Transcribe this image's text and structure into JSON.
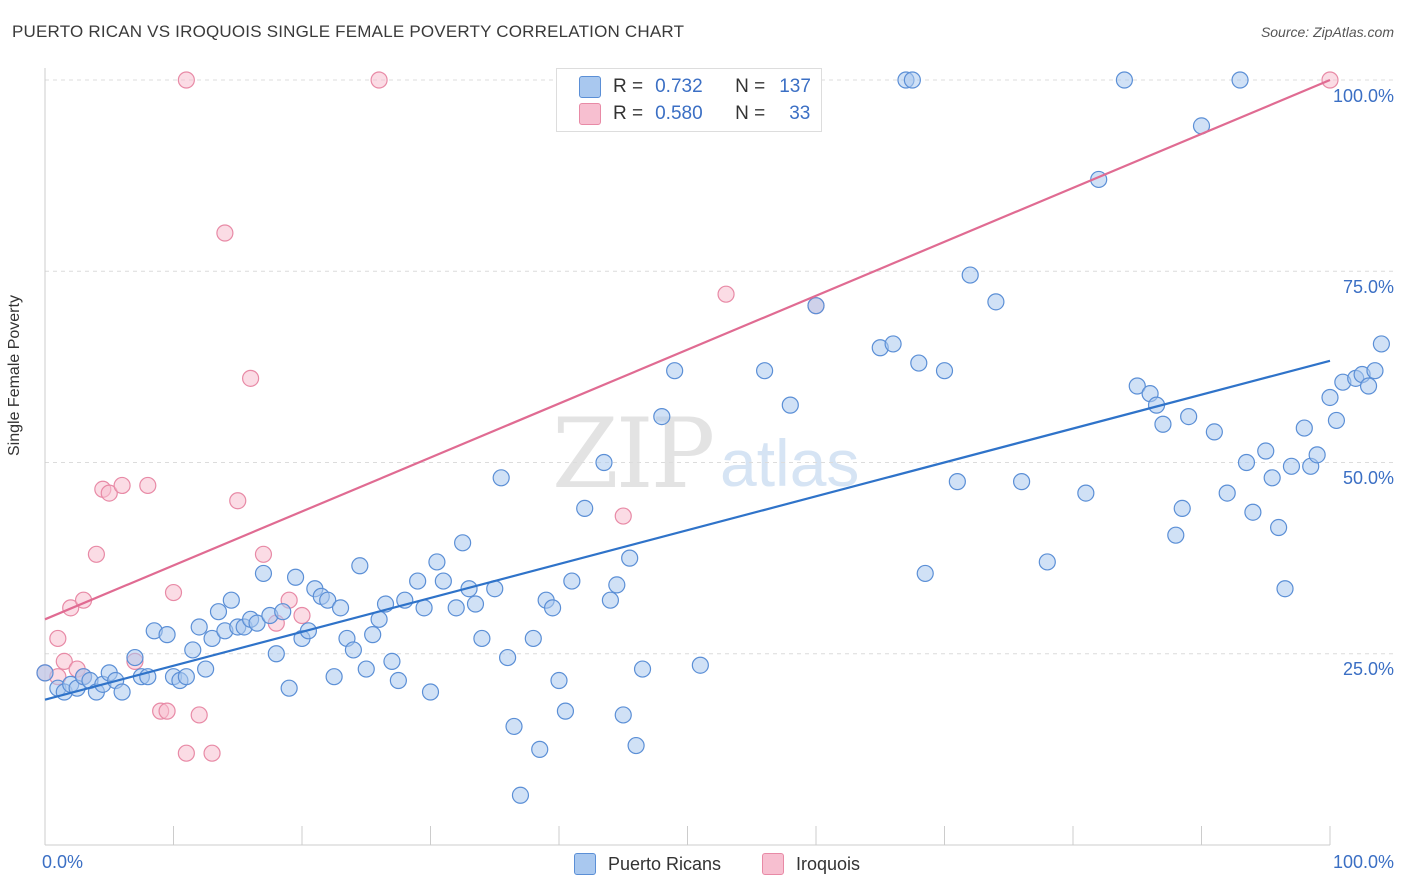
{
  "title": "PUERTO RICAN VS IROQUOIS SINGLE FEMALE POVERTY CORRELATION CHART",
  "source": "Source: ZipAtlas.com",
  "watermark": {
    "zip": "ZIP",
    "atlas": "atlas"
  },
  "colors": {
    "blue_fill": "#a9c8ef",
    "blue_stroke": "#5b8fd6",
    "blue_line": "#2f73c9",
    "pink_fill": "#f7bfd0",
    "pink_stroke": "#e88aa6",
    "pink_line": "#e06b92",
    "grid": "#dcdcdc",
    "axis_text": "#3b6fc4"
  },
  "legend": [
    {
      "r_label": "R =",
      "r_value": "0.732",
      "n_label": "N =",
      "n_value": "137"
    },
    {
      "r_label": "R =",
      "r_value": "0.580",
      "n_label": "N =",
      "n_value": "33"
    }
  ],
  "bottom_legend": [
    "Puerto Ricans",
    "Iroquois"
  ],
  "x_tick_labels": [
    "0.0%",
    "100.0%"
  ],
  "y_tick_labels": [
    "100.0%",
    "75.0%",
    "50.0%",
    "25.0%"
  ],
  "chart_data": {
    "type": "scatter",
    "title": "PUERTO RICAN VS IROQUOIS SINGLE FEMALE POVERTY CORRELATION CHART",
    "xlabel": "",
    "ylabel": "Single Female Poverty",
    "xlim": [
      0,
      100
    ],
    "ylim": [
      0,
      100
    ],
    "y_gridlines": [
      25,
      50,
      75,
      100
    ],
    "series": [
      {
        "name": "Puerto Ricans",
        "r": 0.732,
        "n": 137,
        "trend": {
          "x": [
            0,
            100
          ],
          "y": [
            19,
            63.3
          ]
        },
        "points": [
          [
            0,
            22.5
          ],
          [
            1,
            20.5
          ],
          [
            1.5,
            20
          ],
          [
            2,
            21
          ],
          [
            2.5,
            20.5
          ],
          [
            3,
            22
          ],
          [
            3.5,
            21.5
          ],
          [
            4,
            20
          ],
          [
            4.5,
            21
          ],
          [
            5,
            22.5
          ],
          [
            5.5,
            21.5
          ],
          [
            6,
            20
          ],
          [
            7,
            24.5
          ],
          [
            7.5,
            22
          ],
          [
            8,
            22
          ],
          [
            8.5,
            28
          ],
          [
            9.5,
            27.5
          ],
          [
            10,
            22
          ],
          [
            10.5,
            21.5
          ],
          [
            11,
            22
          ],
          [
            11.5,
            25.5
          ],
          [
            12,
            28.5
          ],
          [
            12.5,
            23
          ],
          [
            13,
            27
          ],
          [
            13.5,
            30.5
          ],
          [
            14,
            28
          ],
          [
            14.5,
            32
          ],
          [
            15,
            28.5
          ],
          [
            15.5,
            28.5
          ],
          [
            16,
            29.5
          ],
          [
            16.5,
            29
          ],
          [
            17,
            35.5
          ],
          [
            17.5,
            30
          ],
          [
            18,
            25
          ],
          [
            18.5,
            30.5
          ],
          [
            19,
            20.5
          ],
          [
            19.5,
            35
          ],
          [
            20,
            27
          ],
          [
            20.5,
            28
          ],
          [
            21,
            33.5
          ],
          [
            21.5,
            32.5
          ],
          [
            22,
            32
          ],
          [
            22.5,
            22
          ],
          [
            23,
            31
          ],
          [
            23.5,
            27
          ],
          [
            24,
            25.5
          ],
          [
            24.5,
            36.5
          ],
          [
            25,
            23
          ],
          [
            25.5,
            27.5
          ],
          [
            26,
            29.5
          ],
          [
            26.5,
            31.5
          ],
          [
            27,
            24
          ],
          [
            27.5,
            21.5
          ],
          [
            28,
            32
          ],
          [
            29,
            34.5
          ],
          [
            29.5,
            31
          ],
          [
            30,
            20
          ],
          [
            30.5,
            37
          ],
          [
            31,
            34.5
          ],
          [
            32,
            31
          ],
          [
            32.5,
            39.5
          ],
          [
            33,
            33.5
          ],
          [
            33.5,
            31.5
          ],
          [
            34,
            27
          ],
          [
            35,
            33.5
          ],
          [
            35.5,
            48
          ],
          [
            36,
            24.5
          ],
          [
            36.5,
            15.5
          ],
          [
            37,
            6.5
          ],
          [
            38,
            27
          ],
          [
            38.5,
            12.5
          ],
          [
            39,
            32
          ],
          [
            39.5,
            31
          ],
          [
            40,
            21.5
          ],
          [
            40.5,
            17.5
          ],
          [
            41,
            34.5
          ],
          [
            42,
            44
          ],
          [
            43.5,
            50
          ],
          [
            44,
            32
          ],
          [
            44.5,
            34
          ],
          [
            45,
            17
          ],
          [
            45.5,
            37.5
          ],
          [
            46,
            13
          ],
          [
            46.5,
            23
          ],
          [
            48,
            56
          ],
          [
            49,
            62
          ],
          [
            51,
            23.5
          ],
          [
            56,
            62
          ],
          [
            58,
            57.5
          ],
          [
            60,
            70.5
          ],
          [
            65,
            65
          ],
          [
            66,
            65.5
          ],
          [
            67,
            100
          ],
          [
            67.5,
            100
          ],
          [
            68,
            63
          ],
          [
            68.5,
            35.5
          ],
          [
            70,
            62
          ],
          [
            71,
            47.5
          ],
          [
            72,
            74.5
          ],
          [
            74,
            71
          ],
          [
            76,
            47.5
          ],
          [
            78,
            37
          ],
          [
            81,
            46
          ],
          [
            82,
            87
          ],
          [
            84,
            100
          ],
          [
            85,
            60
          ],
          [
            86,
            59
          ],
          [
            86.5,
            57.5
          ],
          [
            87,
            55
          ],
          [
            88,
            40.5
          ],
          [
            88.5,
            44
          ],
          [
            89,
            56
          ],
          [
            90,
            94
          ],
          [
            91,
            54
          ],
          [
            92,
            46
          ],
          [
            93,
            100
          ],
          [
            93.5,
            50
          ],
          [
            94,
            43.5
          ],
          [
            95,
            51.5
          ],
          [
            95.5,
            48
          ],
          [
            96,
            41.5
          ],
          [
            96.5,
            33.5
          ],
          [
            97,
            49.5
          ],
          [
            98,
            54.5
          ],
          [
            98.5,
            49.5
          ],
          [
            99,
            51
          ],
          [
            100,
            58.5
          ],
          [
            100.5,
            55.5
          ],
          [
            101,
            60.5
          ],
          [
            102,
            61
          ],
          [
            102.5,
            61.5
          ],
          [
            103,
            60
          ],
          [
            103.5,
            62
          ],
          [
            104,
            65.5
          ]
        ]
      },
      {
        "name": "Iroquois",
        "r": 0.58,
        "n": 33,
        "trend": {
          "x": [
            0,
            100
          ],
          "y": [
            29.5,
            100
          ]
        },
        "points": [
          [
            0,
            22.5
          ],
          [
            1,
            27
          ],
          [
            1.5,
            24
          ],
          [
            2,
            31
          ],
          [
            2.5,
            23
          ],
          [
            3,
            32
          ],
          [
            4,
            38
          ],
          [
            4.5,
            46.5
          ],
          [
            5,
            46
          ],
          [
            6,
            47
          ],
          [
            7,
            24
          ],
          [
            8,
            47
          ],
          [
            9,
            17.5
          ],
          [
            9.5,
            17.5
          ],
          [
            10,
            33
          ],
          [
            11,
            12
          ],
          [
            12,
            17
          ],
          [
            13,
            12
          ],
          [
            14,
            80
          ],
          [
            15,
            45
          ],
          [
            16,
            61
          ],
          [
            17,
            38
          ],
          [
            18,
            29
          ],
          [
            19,
            32
          ],
          [
            20,
            30
          ],
          [
            11,
            100
          ],
          [
            26,
            100
          ],
          [
            45,
            43
          ],
          [
            53,
            72
          ],
          [
            60,
            70.5
          ],
          [
            100,
            100
          ],
          [
            3,
            22
          ],
          [
            1,
            22
          ]
        ]
      }
    ]
  }
}
